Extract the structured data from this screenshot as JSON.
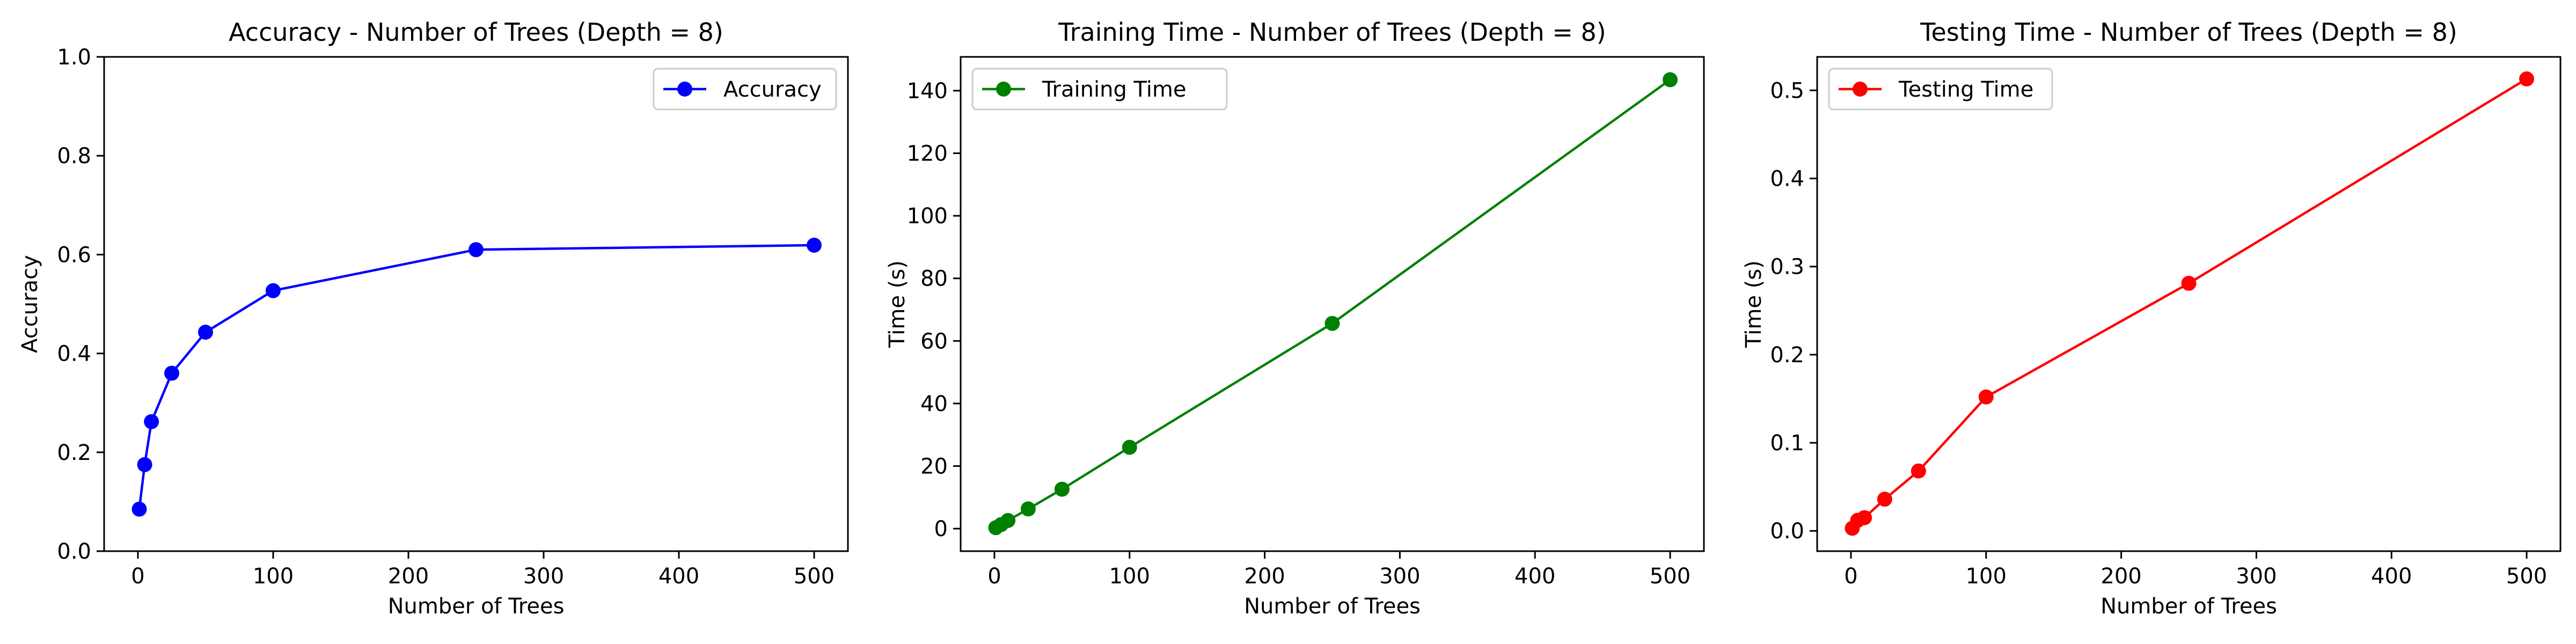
{
  "chart_data": [
    {
      "type": "line",
      "title": "Accuracy - Number of Trees (Depth = 8)",
      "xlabel": "Number of Trees",
      "ylabel": "Accuracy",
      "xlim": [
        -25,
        525
      ],
      "ylim": [
        0,
        1.0
      ],
      "xticks": [
        0,
        100,
        200,
        300,
        400,
        500
      ],
      "xtick_labels": [
        "0",
        "100",
        "200",
        "300",
        "400",
        "500"
      ],
      "yticks": [
        0,
        0.2,
        0.4,
        0.6,
        0.8,
        1.0
      ],
      "ytick_labels": [
        "0.0",
        "0.2",
        "0.4",
        "0.6",
        "0.8",
        "1.0"
      ],
      "legend_position": "top-right",
      "grid": false,
      "series": [
        {
          "name": "Accuracy",
          "color": "#0000ff",
          "marker": "circle",
          "x": [
            1,
            5,
            10,
            25,
            50,
            100,
            250,
            500
          ],
          "y": [
            0.085,
            0.175,
            0.262,
            0.36,
            0.443,
            0.527,
            0.61,
            0.619
          ]
        }
      ]
    },
    {
      "type": "line",
      "title": "Training Time - Number of Trees (Depth = 8)",
      "xlabel": "Number of Trees",
      "ylabel": "Time (s)",
      "xlim": [
        -25,
        525
      ],
      "ylim": [
        -7.2,
        150.8
      ],
      "xticks": [
        0,
        100,
        200,
        300,
        400,
        500
      ],
      "xtick_labels": [
        "0",
        "100",
        "200",
        "300",
        "400",
        "500"
      ],
      "yticks": [
        0,
        20,
        40,
        60,
        80,
        100,
        120,
        140
      ],
      "ytick_labels": [
        "0",
        "20",
        "40",
        "60",
        "80",
        "100",
        "120",
        "140"
      ],
      "legend_position": "top-left",
      "grid": false,
      "series": [
        {
          "name": "Training Time",
          "color": "#008000",
          "marker": "circle",
          "x": [
            1,
            5,
            10,
            25,
            50,
            100,
            250,
            500
          ],
          "y": [
            0.3,
            1.3,
            2.6,
            6.3,
            12.6,
            26.0,
            65.6,
            143.5
          ]
        }
      ]
    },
    {
      "type": "line",
      "title": "Testing Time - Number of Trees (Depth = 8)",
      "xlabel": "Number of Trees",
      "ylabel": "Time (s)",
      "xlim": [
        -25,
        525
      ],
      "ylim": [
        -0.023,
        0.538
      ],
      "xticks": [
        0,
        100,
        200,
        300,
        400,
        500
      ],
      "xtick_labels": [
        "0",
        "100",
        "200",
        "300",
        "400",
        "500"
      ],
      "yticks": [
        0,
        0.1,
        0.2,
        0.3,
        0.4,
        0.5
      ],
      "ytick_labels": [
        "0.0",
        "0.1",
        "0.2",
        "0.3",
        "0.4",
        "0.5"
      ],
      "legend_position": "top-left",
      "grid": false,
      "series": [
        {
          "name": "Testing Time",
          "color": "#ff0000",
          "marker": "circle",
          "x": [
            1,
            5,
            10,
            25,
            50,
            100,
            250,
            500
          ],
          "y": [
            0.003,
            0.012,
            0.015,
            0.036,
            0.068,
            0.152,
            0.281,
            0.513
          ]
        }
      ]
    }
  ]
}
